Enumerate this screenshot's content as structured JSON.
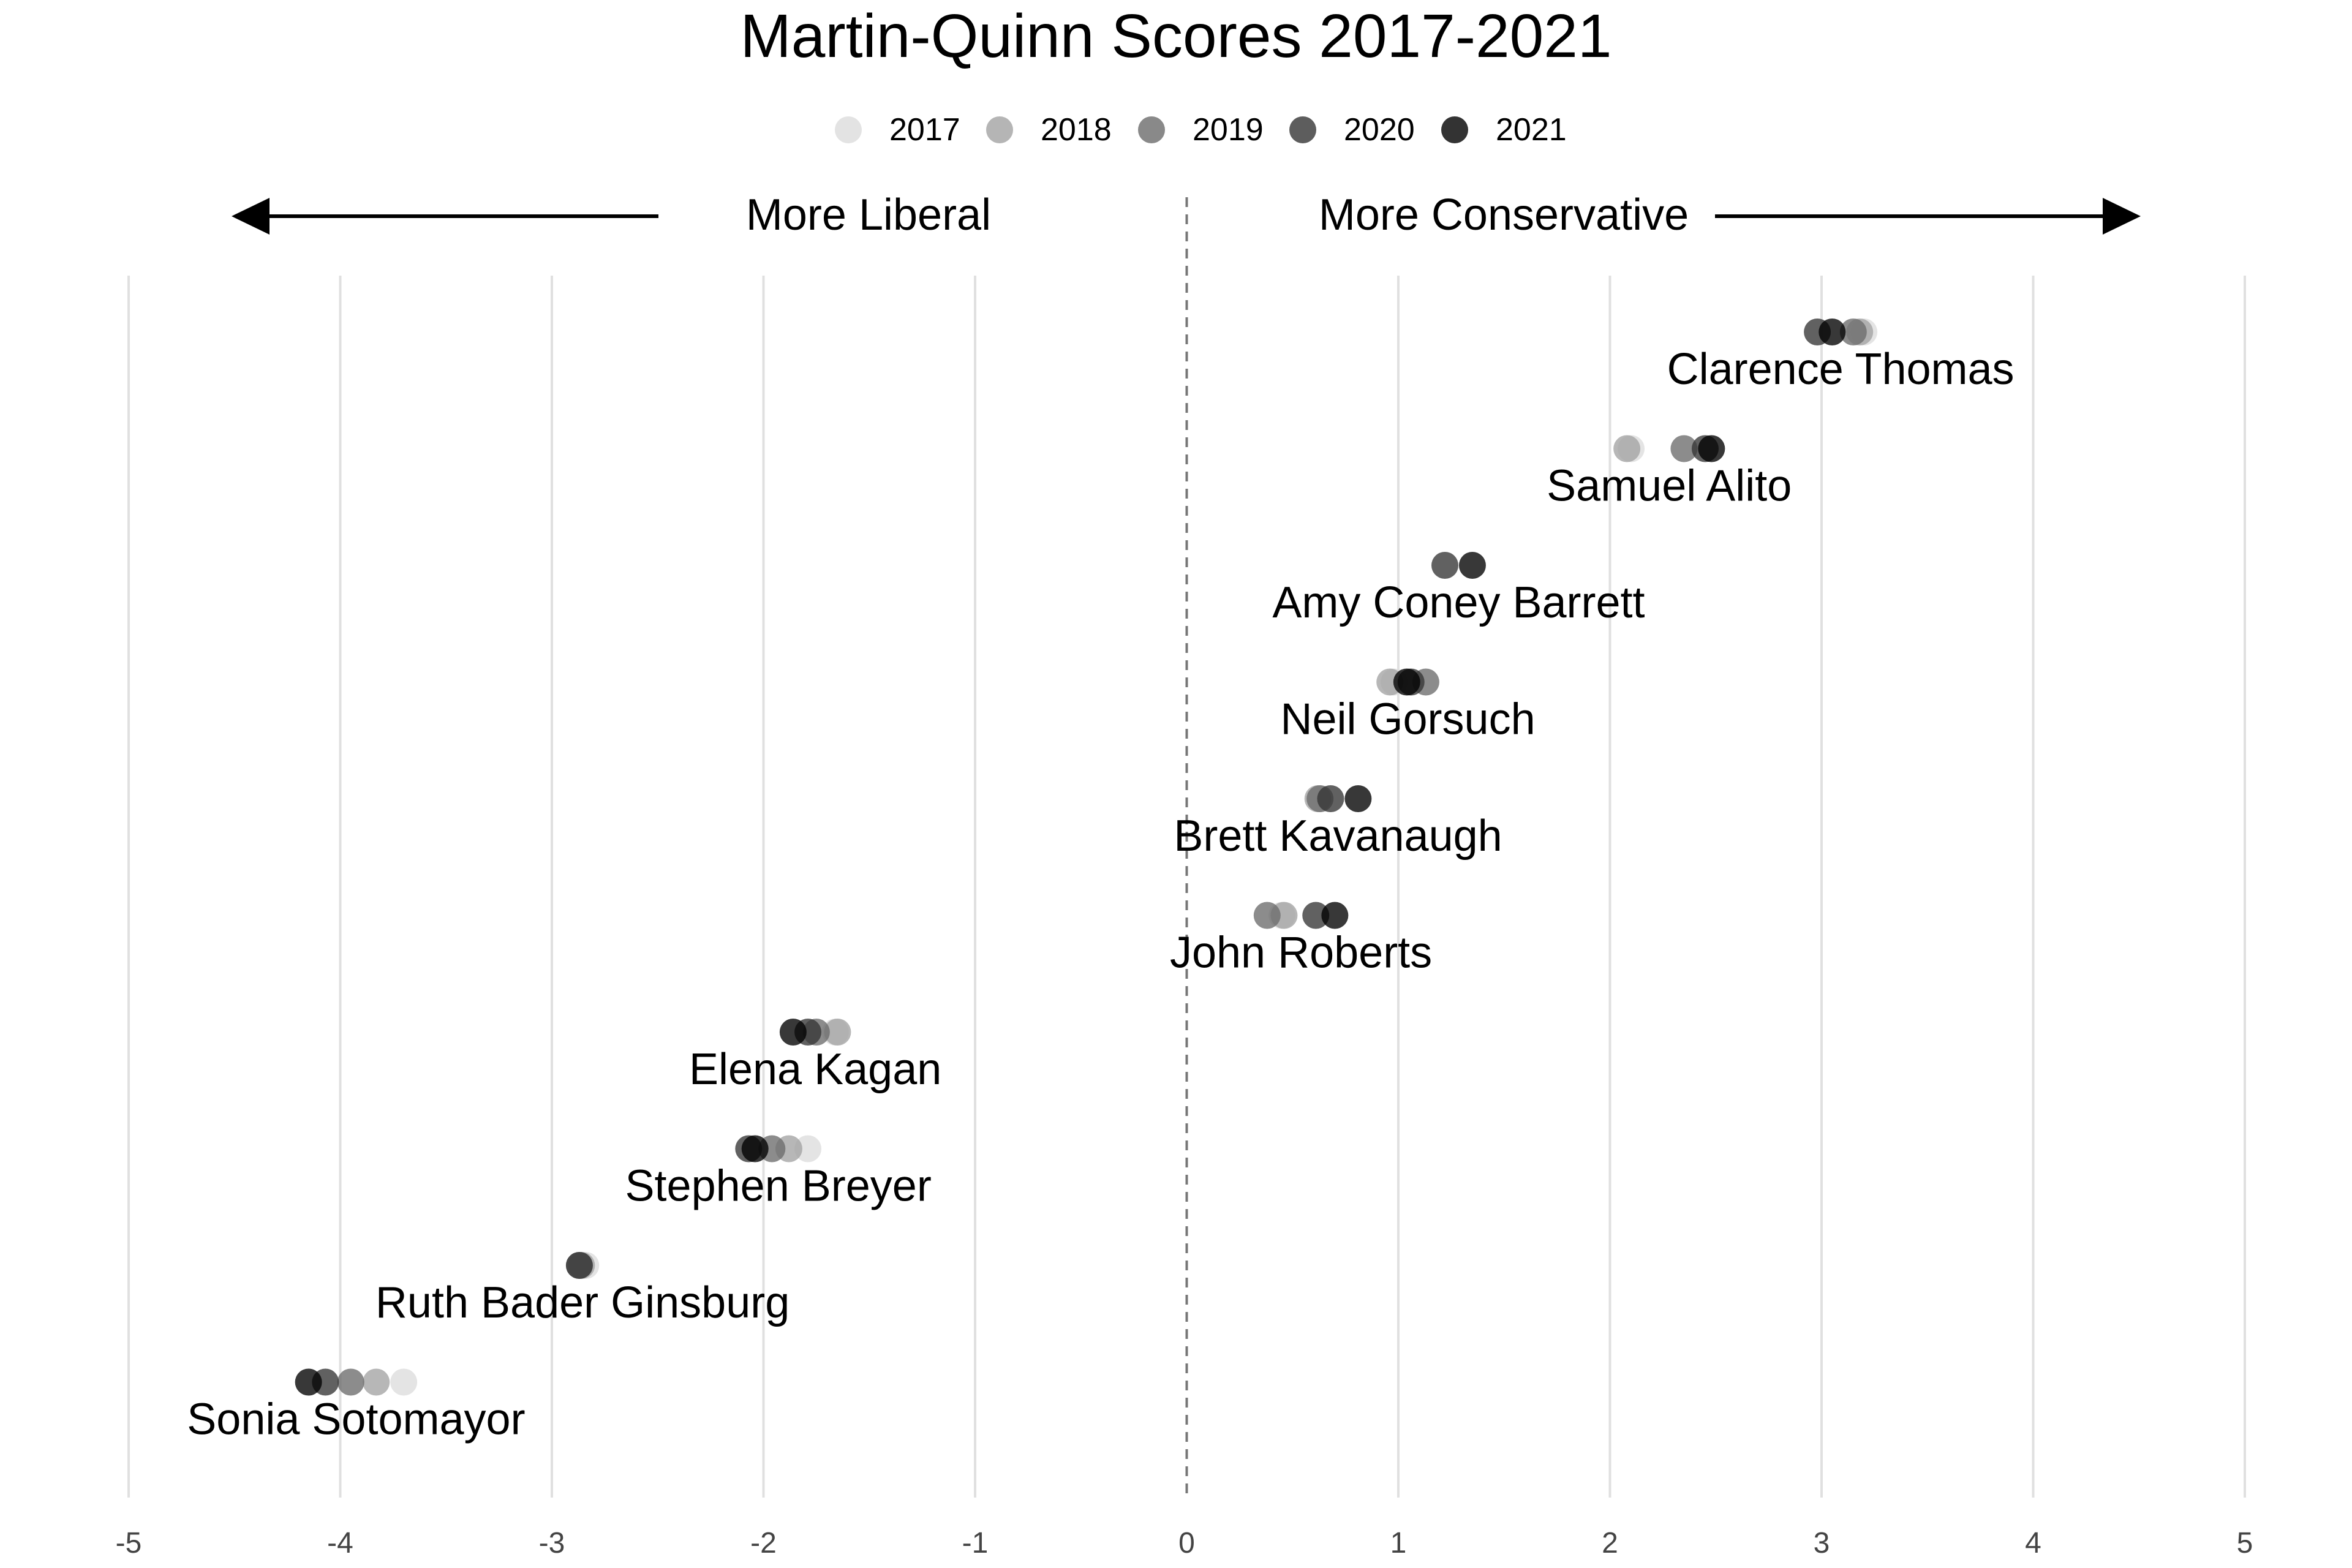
{
  "chart_data": {
    "type": "scatter",
    "title": "Martin-Quinn Scores 2017-2021",
    "xlabel": "",
    "ylabel": "",
    "xlim": [
      -5,
      5
    ],
    "x_ticks": [
      "-5",
      "-4",
      "-3",
      "-2",
      "-1",
      "0",
      "1",
      "2",
      "3",
      "4",
      "5"
    ],
    "grid": "vertical",
    "legend_position": "top",
    "annotations": {
      "left": "More Liberal",
      "right": "More Conservative"
    },
    "legend": [
      {
        "name": "2017",
        "color": "#dcdcdc"
      },
      {
        "name": "2018",
        "color": "#a3a3a3"
      },
      {
        "name": "2019",
        "color": "#6b6b6b"
      },
      {
        "name": "2020",
        "color": "#353535"
      },
      {
        "name": "2021",
        "color": "#000000"
      }
    ],
    "justices": [
      {
        "name": "Clarence Thomas",
        "scores": {
          "2017": 3.2,
          "2018": 3.18,
          "2019": 3.15,
          "2020": 2.98,
          "2021": 3.05
        }
      },
      {
        "name": "Samuel Alito",
        "scores": {
          "2017": 2.1,
          "2018": 2.08,
          "2019": 2.35,
          "2020": 2.45,
          "2021": 2.48
        }
      },
      {
        "name": "Amy Coney Barrett",
        "scores": {
          "2020": 1.22,
          "2021": 1.35
        }
      },
      {
        "name": "Neil Gorsuch",
        "scores": {
          "2017": 0.98,
          "2018": 0.96,
          "2019": 1.13,
          "2020": 1.06,
          "2021": 1.04
        }
      },
      {
        "name": "Brett Kavanaugh",
        "scores": {
          "2018": 0.62,
          "2019": 0.63,
          "2020": 0.68,
          "2021": 0.81
        }
      },
      {
        "name": "John Roberts",
        "scores": {
          "2017": 0.45,
          "2018": 0.46,
          "2019": 0.38,
          "2020": 0.61,
          "2021": 0.7
        }
      },
      {
        "name": "Elena Kagan",
        "scores": {
          "2017": -1.66,
          "2018": -1.65,
          "2019": -1.75,
          "2020": -1.79,
          "2021": -1.86
        }
      },
      {
        "name": "Stephen Breyer",
        "scores": {
          "2017": -1.79,
          "2018": -1.88,
          "2019": -1.96,
          "2020": -2.07,
          "2021": -2.04
        }
      },
      {
        "name": "Ruth Bader Ginsburg",
        "scores": {
          "2017": -2.84,
          "2018": -2.86,
          "2019": -2.87,
          "2020": -2.87
        }
      },
      {
        "name": "Sonia Sotomayor",
        "scores": {
          "2017": -3.7,
          "2018": -3.83,
          "2019": -3.95,
          "2020": -4.07,
          "2021": -4.15
        }
      }
    ]
  }
}
